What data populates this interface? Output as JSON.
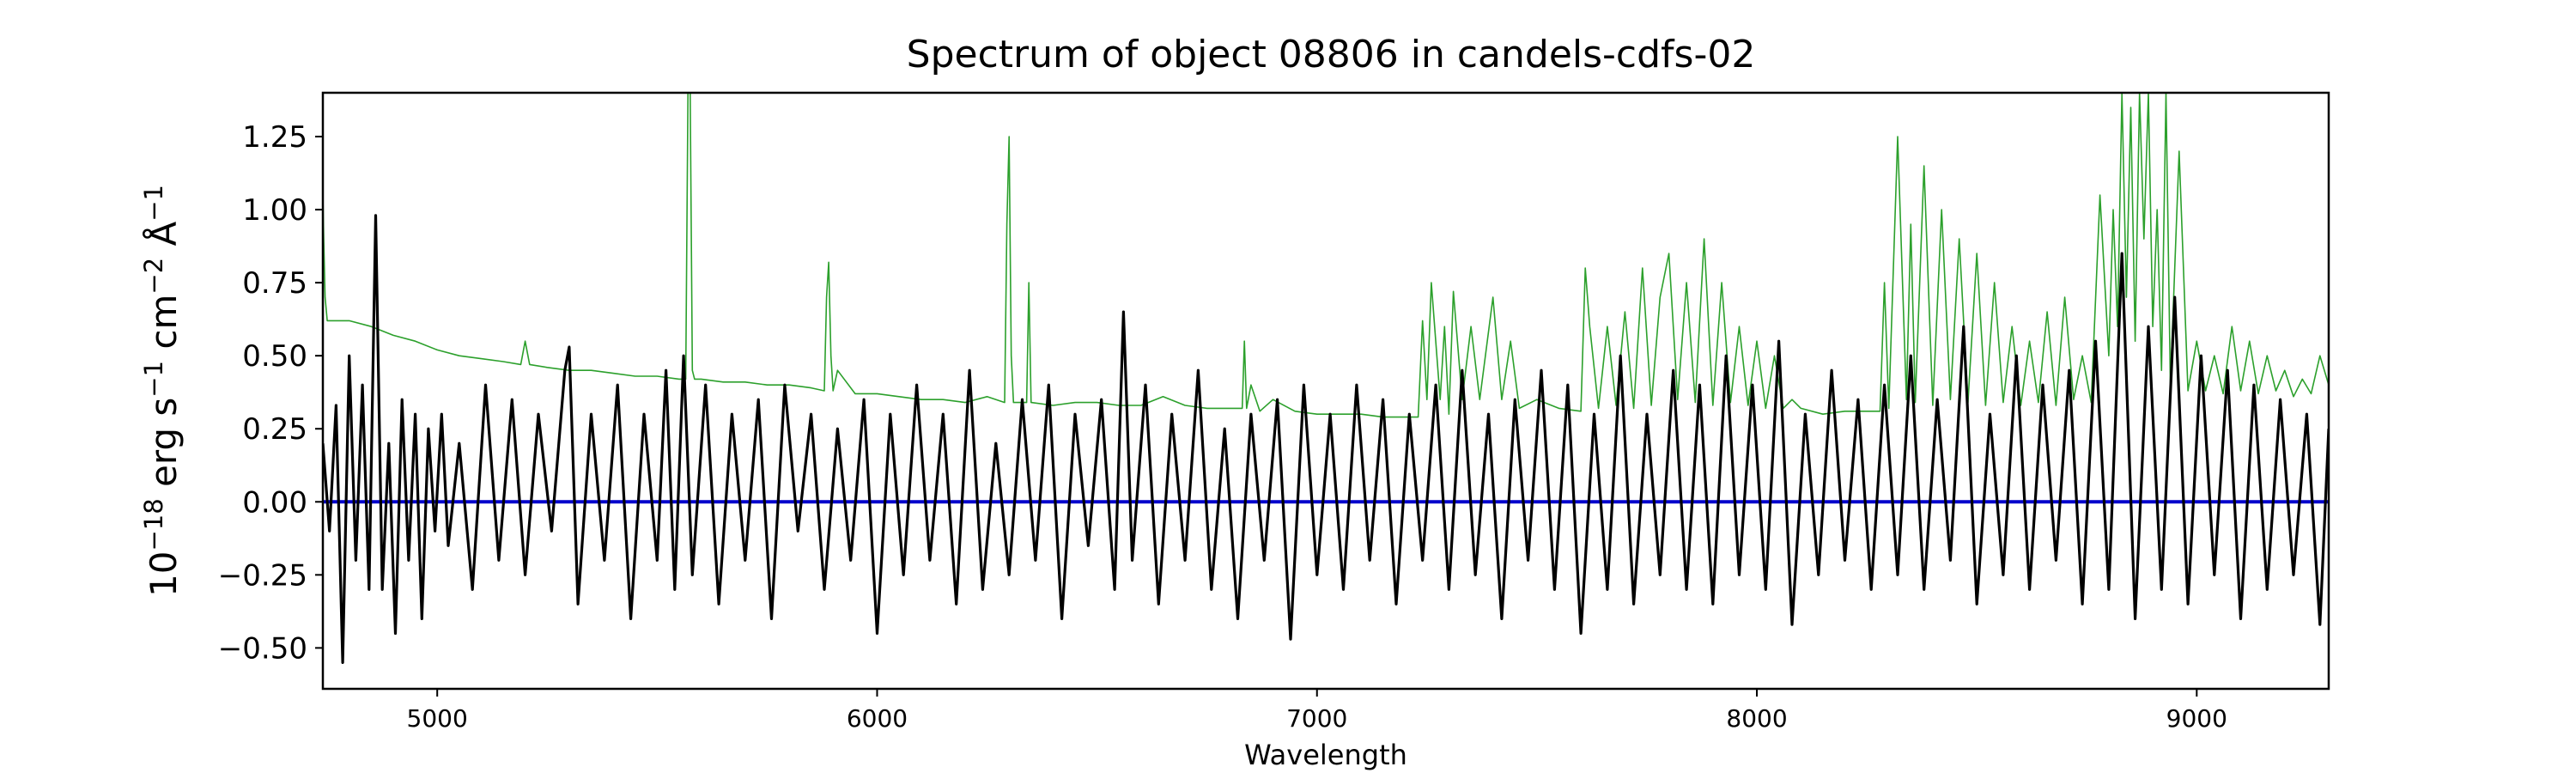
{
  "chart_data": {
    "type": "line",
    "title": "Spectrum of object 08806 in candels-cdfs-02",
    "xlabel": "Wavelength",
    "ylabel_base": "10",
    "ylabel_exp": "−18",
    "ylabel_units": [
      {
        "text": " erg s"
      },
      {
        "text": "−1",
        "sup": true
      },
      {
        "text": " cm"
      },
      {
        "text": "−2",
        "sup": true
      },
      {
        "text": " Å"
      },
      {
        "text": "−1",
        "sup": true
      }
    ],
    "xlim": [
      4740,
      9300
    ],
    "ylim": [
      -0.64,
      1.4
    ],
    "x_ticks": [
      5000,
      6000,
      7000,
      8000,
      9000
    ],
    "x_tick_labels": [
      "5000",
      "6000",
      "7000",
      "8000",
      "9000"
    ],
    "y_ticks": [
      -0.5,
      -0.25,
      0.0,
      0.25,
      0.5,
      0.75,
      1.0,
      1.25
    ],
    "y_tick_labels": [
      "−0.50",
      "−0.25",
      "0.00",
      "0.25",
      "0.50",
      "0.75",
      "1.00",
      "1.25"
    ],
    "colors": {
      "flux": "#000000",
      "error": "#2ca02c",
      "zero": "#0000cc",
      "axes": "#000000"
    },
    "series": [
      {
        "key": "flux",
        "x": [
          4740,
          4755,
          4770,
          4785,
          4800,
          4815,
          4830,
          4845,
          4860,
          4875,
          4890,
          4905,
          4920,
          4935,
          4950,
          4965,
          4980,
          4995,
          5010,
          5025,
          5050,
          5080,
          5110,
          5140,
          5170,
          5200,
          5230,
          5260,
          5290,
          5300,
          5320,
          5350,
          5380,
          5410,
          5440,
          5470,
          5500,
          5520,
          5540,
          5560,
          5580,
          5610,
          5640,
          5670,
          5700,
          5730,
          5760,
          5790,
          5820,
          5850,
          5880,
          5910,
          5940,
          5970,
          6000,
          6030,
          6060,
          6090,
          6120,
          6150,
          6180,
          6210,
          6240,
          6270,
          6300,
          6330,
          6360,
          6390,
          6420,
          6450,
          6480,
          6510,
          6540,
          6560,
          6580,
          6610,
          6640,
          6670,
          6700,
          6730,
          6760,
          6790,
          6820,
          6850,
          6880,
          6910,
          6940,
          6970,
          7000,
          7030,
          7060,
          7090,
          7120,
          7150,
          7180,
          7210,
          7240,
          7270,
          7300,
          7330,
          7360,
          7390,
          7420,
          7450,
          7480,
          7510,
          7540,
          7570,
          7600,
          7630,
          7660,
          7690,
          7720,
          7750,
          7780,
          7810,
          7840,
          7870,
          7900,
          7930,
          7960,
          7990,
          8020,
          8050,
          8080,
          8110,
          8140,
          8170,
          8200,
          8230,
          8260,
          8290,
          8320,
          8350,
          8380,
          8410,
          8440,
          8470,
          8500,
          8530,
          8560,
          8590,
          8620,
          8650,
          8680,
          8710,
          8740,
          8770,
          8800,
          8830,
          8860,
          8890,
          8920,
          8950,
          8980,
          9010,
          9040,
          9070,
          9100,
          9130,
          9160,
          9190,
          9220,
          9250,
          9280,
          9300
        ],
        "y": [
          0.2,
          -0.1,
          0.33,
          -0.55,
          0.5,
          -0.2,
          0.4,
          -0.3,
          0.98,
          -0.3,
          0.2,
          -0.45,
          0.35,
          -0.2,
          0.3,
          -0.4,
          0.25,
          -0.1,
          0.3,
          -0.15,
          0.2,
          -0.3,
          0.4,
          -0.2,
          0.35,
          -0.25,
          0.3,
          -0.1,
          0.45,
          0.53,
          -0.35,
          0.3,
          -0.2,
          0.4,
          -0.4,
          0.3,
          -0.2,
          0.45,
          -0.3,
          0.5,
          -0.25,
          0.4,
          -0.35,
          0.3,
          -0.2,
          0.35,
          -0.4,
          0.4,
          -0.1,
          0.3,
          -0.3,
          0.25,
          -0.2,
          0.35,
          -0.45,
          0.3,
          -0.25,
          0.4,
          -0.2,
          0.3,
          -0.35,
          0.45,
          -0.3,
          0.2,
          -0.25,
          0.35,
          -0.2,
          0.4,
          -0.4,
          0.3,
          -0.15,
          0.35,
          -0.3,
          0.65,
          -0.2,
          0.4,
          -0.35,
          0.3,
          -0.2,
          0.45,
          -0.3,
          0.25,
          -0.4,
          0.3,
          -0.2,
          0.35,
          -0.47,
          0.4,
          -0.25,
          0.3,
          -0.3,
          0.4,
          -0.2,
          0.35,
          -0.35,
          0.3,
          -0.2,
          0.4,
          -0.3,
          0.45,
          -0.25,
          0.3,
          -0.4,
          0.35,
          -0.2,
          0.45,
          -0.3,
          0.4,
          -0.45,
          0.3,
          -0.3,
          0.5,
          -0.35,
          0.3,
          -0.25,
          0.45,
          -0.3,
          0.4,
          -0.35,
          0.5,
          -0.25,
          0.4,
          -0.3,
          0.55,
          -0.42,
          0.3,
          -0.25,
          0.45,
          -0.2,
          0.35,
          -0.3,
          0.4,
          -0.25,
          0.5,
          -0.3,
          0.35,
          -0.2,
          0.6,
          -0.35,
          0.3,
          -0.25,
          0.5,
          -0.3,
          0.4,
          -0.2,
          0.45,
          -0.35,
          0.55,
          -0.3,
          0.85,
          -0.4,
          0.6,
          -0.3,
          0.7,
          -0.35,
          0.5,
          -0.25,
          0.45,
          -0.4,
          0.4,
          -0.3,
          0.35,
          -0.25,
          0.3,
          -0.42,
          0.25
        ]
      },
      {
        "key": "error",
        "x": [
          4740,
          4742,
          4745,
          4750,
          4800,
          4850,
          4900,
          4950,
          5000,
          5050,
          5100,
          5150,
          5190,
          5200,
          5210,
          5250,
          5300,
          5350,
          5400,
          5450,
          5500,
          5550,
          5565,
          5570,
          5575,
          5580,
          5585,
          5600,
          5650,
          5700,
          5750,
          5800,
          5850,
          5880,
          5885,
          5890,
          5895,
          5900,
          5910,
          5950,
          6000,
          6050,
          6100,
          6150,
          6200,
          6250,
          6290,
          6295,
          6300,
          6305,
          6310,
          6340,
          6345,
          6350,
          6400,
          6450,
          6500,
          6550,
          6600,
          6650,
          6700,
          6750,
          6800,
          6830,
          6835,
          6840,
          6850,
          6870,
          6900,
          6950,
          7000,
          7050,
          7100,
          7150,
          7200,
          7230,
          7240,
          7250,
          7260,
          7280,
          7290,
          7300,
          7310,
          7330,
          7350,
          7370,
          7400,
          7420,
          7440,
          7460,
          7500,
          7550,
          7600,
          7610,
          7620,
          7640,
          7660,
          7680,
          7700,
          7720,
          7740,
          7760,
          7780,
          7800,
          7820,
          7840,
          7860,
          7880,
          7900,
          7920,
          7940,
          7960,
          7980,
          8000,
          8020,
          8040,
          8060,
          8080,
          8100,
          8150,
          8200,
          8250,
          8280,
          8290,
          8300,
          8320,
          8340,
          8350,
          8360,
          8380,
          8400,
          8420,
          8440,
          8460,
          8480,
          8500,
          8520,
          8540,
          8560,
          8580,
          8600,
          8620,
          8640,
          8660,
          8680,
          8700,
          8720,
          8740,
          8760,
          8780,
          8800,
          8810,
          8820,
          8830,
          8840,
          8850,
          8860,
          8870,
          8880,
          8890,
          8900,
          8910,
          8920,
          8930,
          8940,
          8960,
          8980,
          9000,
          9020,
          9040,
          9060,
          9080,
          9100,
          9120,
          9140,
          9160,
          9180,
          9200,
          9220,
          9240,
          9260,
          9280,
          9300
        ],
        "y": [
          1.05,
          0.9,
          0.7,
          0.62,
          0.62,
          0.6,
          0.57,
          0.55,
          0.52,
          0.5,
          0.49,
          0.48,
          0.47,
          0.55,
          0.47,
          0.46,
          0.45,
          0.45,
          0.44,
          0.43,
          0.43,
          0.42,
          0.42,
          1.4,
          1.4,
          0.45,
          0.42,
          0.42,
          0.41,
          0.41,
          0.4,
          0.4,
          0.39,
          0.38,
          0.7,
          0.82,
          0.5,
          0.38,
          0.45,
          0.37,
          0.37,
          0.36,
          0.35,
          0.35,
          0.34,
          0.36,
          0.34,
          0.95,
          1.25,
          0.5,
          0.34,
          0.34,
          0.75,
          0.34,
          0.33,
          0.34,
          0.34,
          0.33,
          0.33,
          0.36,
          0.33,
          0.32,
          0.32,
          0.32,
          0.55,
          0.32,
          0.4,
          0.31,
          0.35,
          0.31,
          0.3,
          0.3,
          0.3,
          0.29,
          0.29,
          0.29,
          0.62,
          0.35,
          0.75,
          0.35,
          0.6,
          0.3,
          0.72,
          0.35,
          0.6,
          0.35,
          0.7,
          0.35,
          0.55,
          0.32,
          0.35,
          0.32,
          0.31,
          0.8,
          0.6,
          0.32,
          0.6,
          0.33,
          0.65,
          0.32,
          0.8,
          0.33,
          0.7,
          0.85,
          0.35,
          0.75,
          0.34,
          0.9,
          0.33,
          0.75,
          0.34,
          0.6,
          0.33,
          0.55,
          0.32,
          0.5,
          0.32,
          0.35,
          0.32,
          0.3,
          0.31,
          0.31,
          0.31,
          0.75,
          0.32,
          1.25,
          0.35,
          0.95,
          0.34,
          1.15,
          0.33,
          1.0,
          0.35,
          0.9,
          0.34,
          0.85,
          0.33,
          0.75,
          0.34,
          0.6,
          0.33,
          0.55,
          0.34,
          0.65,
          0.33,
          0.7,
          0.35,
          0.5,
          0.34,
          1.05,
          0.5,
          1.0,
          0.6,
          1.4,
          0.7,
          1.35,
          0.55,
          1.4,
          0.9,
          1.4,
          0.6,
          1.0,
          0.45,
          1.4,
          0.4,
          1.2,
          0.38,
          0.55,
          0.38,
          0.5,
          0.37,
          0.6,
          0.38,
          0.55,
          0.37,
          0.5,
          0.38,
          0.45,
          0.36,
          0.42,
          0.37,
          0.5,
          0.4
        ]
      },
      {
        "key": "zero",
        "x": [
          4740,
          9300
        ],
        "y": [
          0.0,
          0.0
        ]
      }
    ]
  }
}
